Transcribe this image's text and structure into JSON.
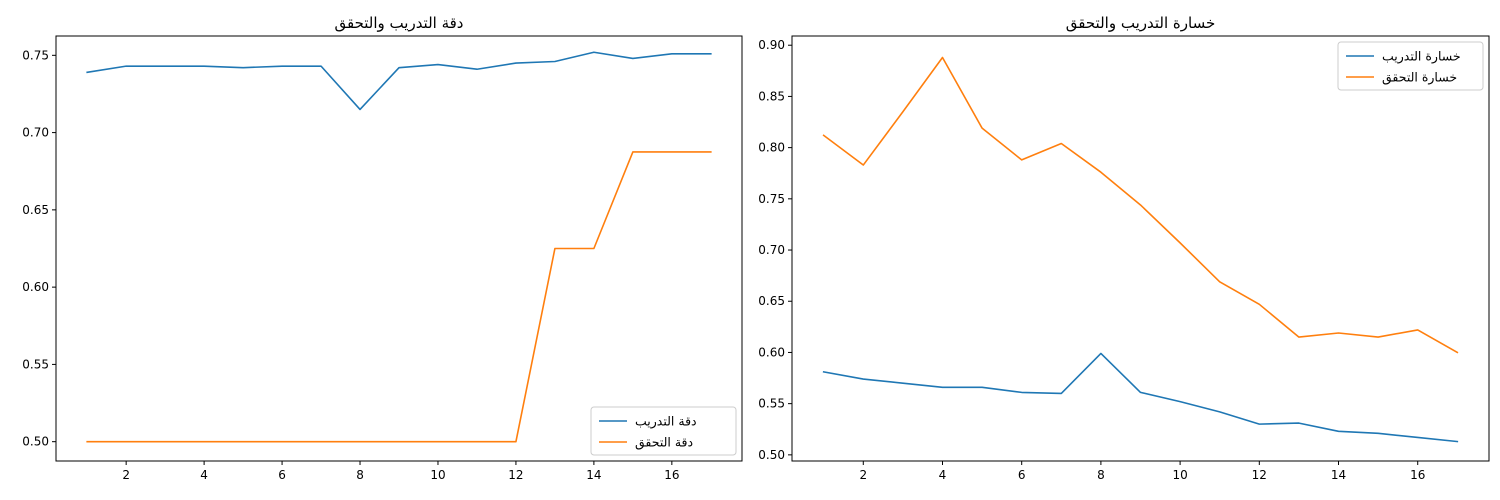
{
  "chart_data": [
    {
      "type": "line",
      "title": "دقة التدريب والتحقق",
      "xlabel": "",
      "ylabel": "",
      "x": [
        1,
        2,
        3,
        4,
        5,
        6,
        7,
        8,
        9,
        10,
        11,
        12,
        13,
        14,
        15,
        16,
        17
      ],
      "xticks": [
        2,
        4,
        6,
        8,
        10,
        12,
        14,
        16
      ],
      "yticks": [
        0.5,
        0.55,
        0.6,
        0.65,
        0.7,
        0.75
      ],
      "xlim": [
        0.2,
        17.8
      ],
      "ylim": [
        0.4875,
        0.7625
      ],
      "grid": false,
      "legend_position": "lower-right",
      "series": [
        {
          "name": "دقة التدريب",
          "color": "#1f77b4",
          "values": [
            0.739,
            0.743,
            0.743,
            0.743,
            0.742,
            0.743,
            0.743,
            0.715,
            0.742,
            0.744,
            0.741,
            0.745,
            0.746,
            0.752,
            0.748,
            0.751,
            0.751
          ]
        },
        {
          "name": "دقة التحقق",
          "color": "#ff7f0e",
          "values": [
            0.5,
            0.5,
            0.5,
            0.5,
            0.5,
            0.5,
            0.5,
            0.5,
            0.5,
            0.5,
            0.5,
            0.5,
            0.625,
            0.625,
            0.6875,
            0.6875,
            0.6875
          ]
        }
      ]
    },
    {
      "type": "line",
      "title": "خسارة التدريب والتحقق",
      "xlabel": "",
      "ylabel": "",
      "x": [
        1,
        2,
        3,
        4,
        5,
        6,
        7,
        8,
        9,
        10,
        11,
        12,
        13,
        14,
        15,
        16,
        17
      ],
      "xticks": [
        2,
        4,
        6,
        8,
        10,
        12,
        14,
        16
      ],
      "yticks": [
        0.5,
        0.55,
        0.6,
        0.65,
        0.7,
        0.75,
        0.8,
        0.85,
        0.9
      ],
      "xlim": [
        0.2,
        17.8
      ],
      "ylim": [
        0.494,
        0.909
      ],
      "grid": false,
      "legend_position": "top-right",
      "series": [
        {
          "name": "خسارة التدريب",
          "color": "#1f77b4",
          "values": [
            0.581,
            0.574,
            0.57,
            0.566,
            0.566,
            0.561,
            0.56,
            0.599,
            0.561,
            0.552,
            0.542,
            0.53,
            0.531,
            0.523,
            0.521,
            0.517,
            0.513
          ]
        },
        {
          "name": "خسارة التحقق",
          "color": "#ff7f0e",
          "values": [
            0.812,
            0.783,
            0.835,
            0.888,
            0.819,
            0.788,
            0.804,
            0.776,
            0.744,
            0.707,
            0.669,
            0.647,
            0.615,
            0.619,
            0.615,
            0.622,
            0.6
          ]
        }
      ]
    }
  ]
}
